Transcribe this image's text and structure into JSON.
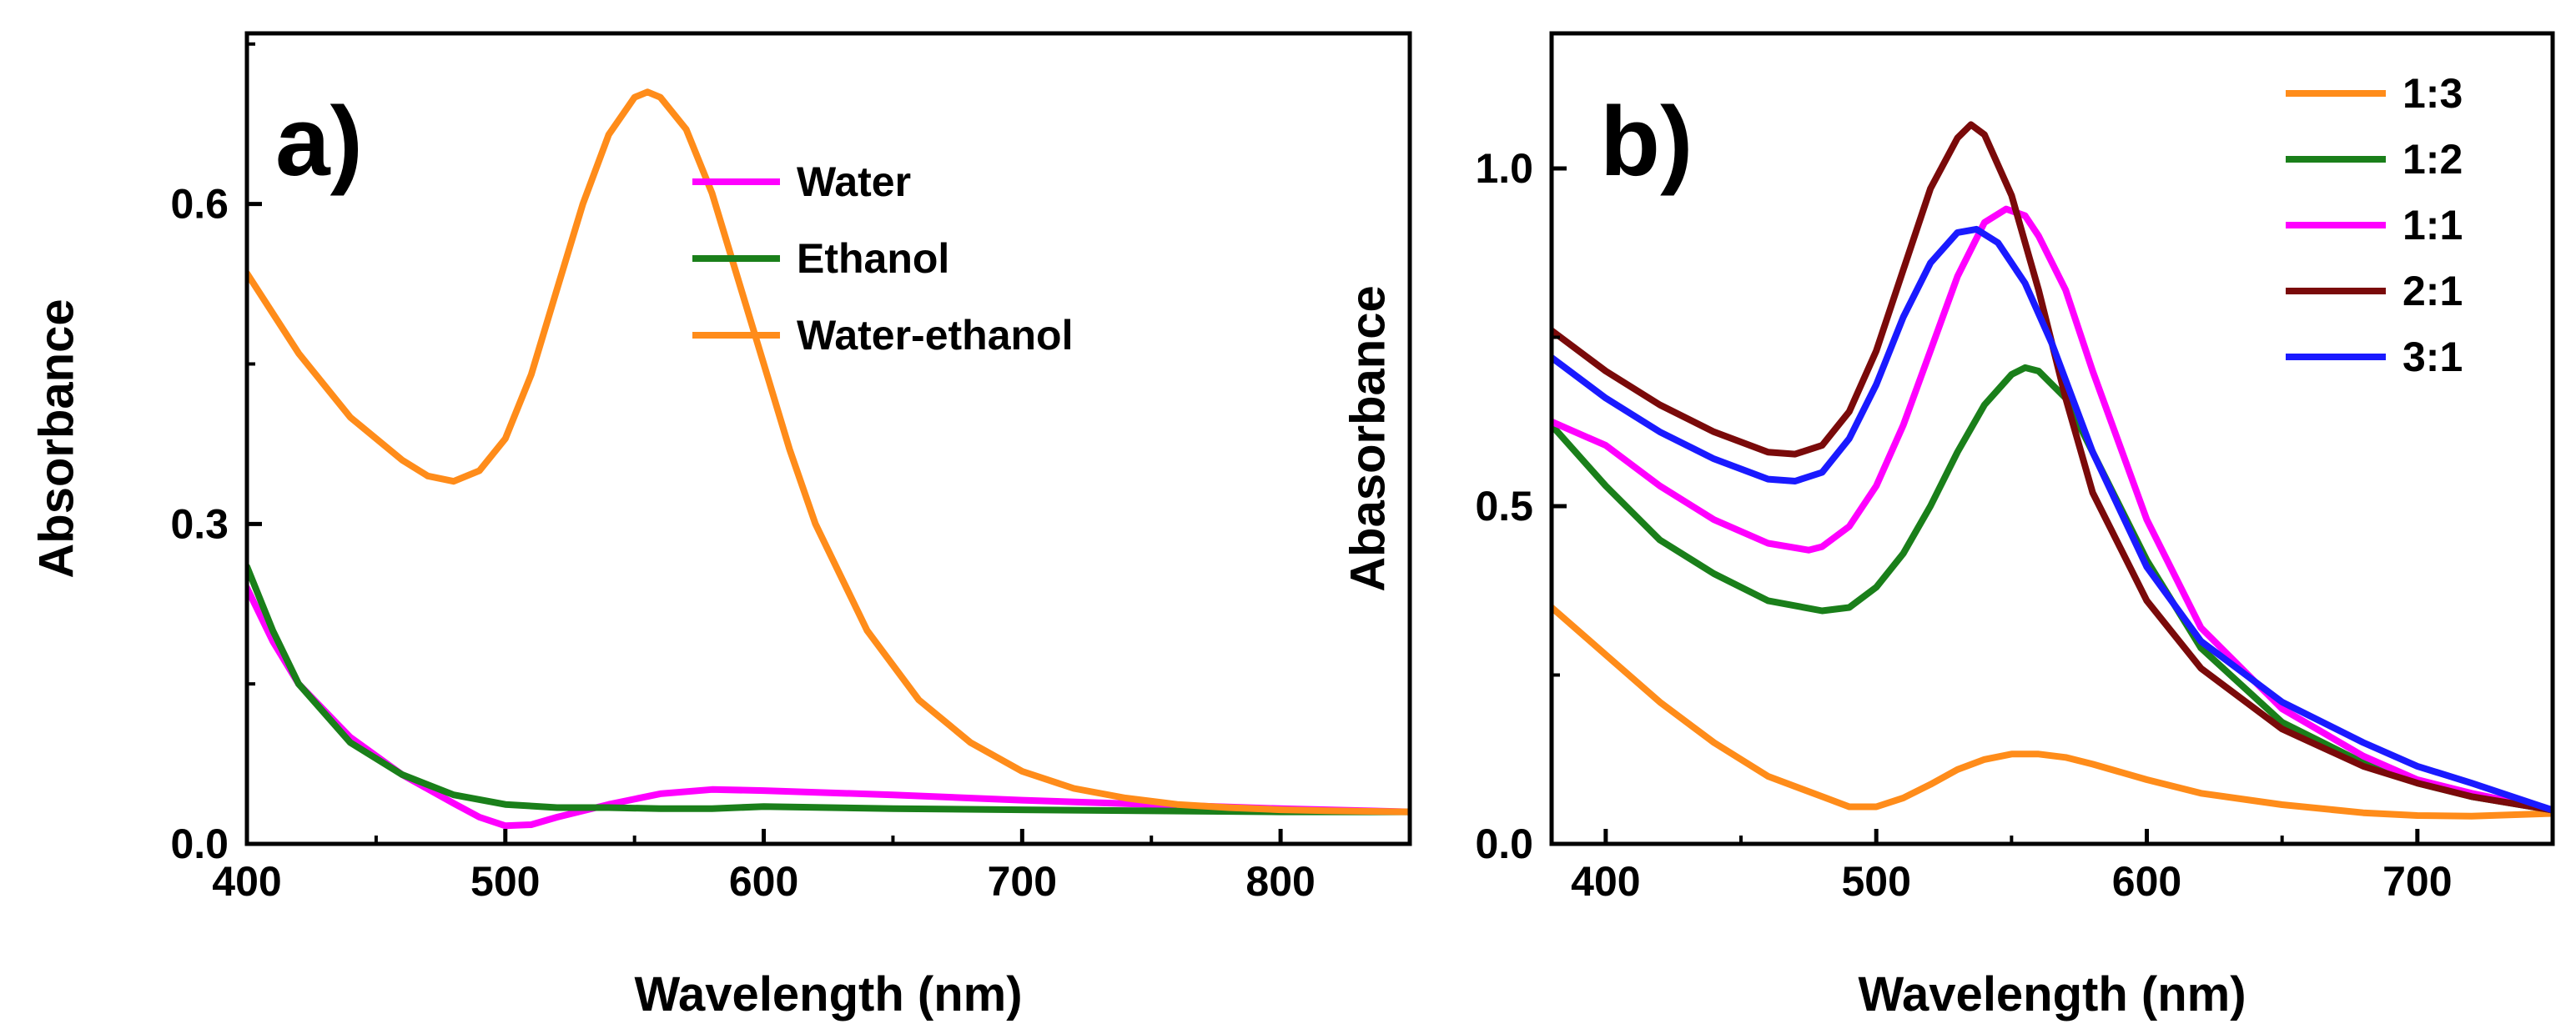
{
  "chart_data": [
    {
      "type": "line",
      "panel_label": "a)",
      "xlabel": "Wavelength (nm)",
      "ylabel": "Absorbance",
      "xlim": [
        400,
        850
      ],
      "ylim": [
        0,
        0.76
      ],
      "xticks": [
        400,
        500,
        600,
        700,
        800
      ],
      "xtick_labels": [
        "400",
        "500",
        "600",
        "700",
        "800"
      ],
      "yticks": [
        0,
        0.3,
        0.6
      ],
      "ytick_labels": [
        "0.0",
        "0.3",
        "0.6"
      ],
      "legend_position": "top-right",
      "series": [
        {
          "name": "Water",
          "color": "#ff00ff",
          "x": [
            400,
            410,
            420,
            440,
            460,
            480,
            490,
            500,
            510,
            520,
            540,
            560,
            580,
            600,
            650,
            700,
            750,
            800,
            850
          ],
          "y": [
            0.24,
            0.19,
            0.15,
            0.1,
            0.065,
            0.038,
            0.025,
            0.017,
            0.018,
            0.025,
            0.037,
            0.047,
            0.051,
            0.05,
            0.046,
            0.041,
            0.037,
            0.033,
            0.03
          ]
        },
        {
          "name": "Ethanol",
          "color": "#1a7f1a",
          "x": [
            400,
            410,
            420,
            440,
            460,
            480,
            500,
            520,
            540,
            560,
            580,
            600,
            650,
            700,
            750,
            800,
            850
          ],
          "y": [
            0.26,
            0.2,
            0.15,
            0.095,
            0.065,
            0.046,
            0.037,
            0.034,
            0.034,
            0.033,
            0.033,
            0.035,
            0.033,
            0.032,
            0.031,
            0.03,
            0.03
          ]
        },
        {
          "name": "Water-ethanol",
          "color": "#ff8c1a",
          "x": [
            400,
            420,
            440,
            460,
            470,
            480,
            490,
            500,
            510,
            520,
            530,
            540,
            550,
            555,
            560,
            570,
            580,
            590,
            600,
            610,
            620,
            640,
            660,
            680,
            700,
            720,
            740,
            760,
            780,
            800,
            820,
            850
          ],
          "y": [
            0.535,
            0.46,
            0.4,
            0.36,
            0.345,
            0.34,
            0.35,
            0.38,
            0.44,
            0.52,
            0.6,
            0.665,
            0.7,
            0.705,
            0.7,
            0.67,
            0.61,
            0.53,
            0.45,
            0.37,
            0.3,
            0.2,
            0.135,
            0.095,
            0.068,
            0.052,
            0.043,
            0.037,
            0.034,
            0.032,
            0.031,
            0.03
          ]
        }
      ]
    },
    {
      "type": "line",
      "panel_label": "b)",
      "xlabel": "Wavelength (nm)",
      "ylabel": "Abasorbance",
      "xlim": [
        380,
        750
      ],
      "ylim": [
        0,
        1.2
      ],
      "xticks": [
        400,
        500,
        600,
        700
      ],
      "xtick_labels": [
        "400",
        "500",
        "600",
        "700"
      ],
      "yticks": [
        0,
        0.5,
        1.0
      ],
      "ytick_labels": [
        "0.0",
        "0.5",
        "1.0"
      ],
      "legend_position": "top-right",
      "series": [
        {
          "name": "1:3",
          "color": "#ff8c1a",
          "x": [
            380,
            400,
            420,
            440,
            460,
            480,
            490,
            500,
            510,
            520,
            530,
            540,
            550,
            560,
            570,
            580,
            600,
            620,
            650,
            680,
            700,
            720,
            750
          ],
          "y": [
            0.35,
            0.28,
            0.21,
            0.15,
            0.1,
            0.07,
            0.055,
            0.055,
            0.068,
            0.088,
            0.11,
            0.125,
            0.133,
            0.133,
            0.128,
            0.118,
            0.095,
            0.075,
            0.058,
            0.046,
            0.042,
            0.041,
            0.045
          ]
        },
        {
          "name": "1:2",
          "color": "#1a7f1a",
          "x": [
            380,
            400,
            420,
            440,
            460,
            480,
            490,
            500,
            510,
            520,
            530,
            540,
            550,
            555,
            560,
            570,
            580,
            600,
            620,
            650,
            680,
            700,
            720,
            750
          ],
          "y": [
            0.62,
            0.53,
            0.45,
            0.4,
            0.36,
            0.345,
            0.35,
            0.38,
            0.43,
            0.5,
            0.58,
            0.65,
            0.695,
            0.705,
            0.7,
            0.66,
            0.58,
            0.42,
            0.29,
            0.18,
            0.12,
            0.09,
            0.07,
            0.05
          ]
        },
        {
          "name": "1:1",
          "color": "#ff00ff",
          "x": [
            380,
            400,
            420,
            440,
            460,
            475,
            480,
            490,
            500,
            510,
            520,
            530,
            540,
            548,
            555,
            560,
            570,
            580,
            600,
            620,
            650,
            680,
            700,
            720,
            750
          ],
          "y": [
            0.625,
            0.59,
            0.53,
            0.48,
            0.445,
            0.435,
            0.44,
            0.47,
            0.53,
            0.62,
            0.73,
            0.84,
            0.92,
            0.94,
            0.93,
            0.9,
            0.82,
            0.7,
            0.48,
            0.32,
            0.2,
            0.13,
            0.095,
            0.075,
            0.05
          ]
        },
        {
          "name": "2:1",
          "color": "#7a0a0a",
          "x": [
            380,
            400,
            420,
            440,
            460,
            470,
            480,
            490,
            500,
            510,
            520,
            530,
            535,
            540,
            550,
            560,
            570,
            580,
            600,
            620,
            650,
            680,
            700,
            720,
            750
          ],
          "y": [
            0.76,
            0.7,
            0.65,
            0.61,
            0.58,
            0.577,
            0.59,
            0.64,
            0.73,
            0.85,
            0.97,
            1.045,
            1.065,
            1.05,
            0.96,
            0.82,
            0.66,
            0.52,
            0.36,
            0.26,
            0.17,
            0.115,
            0.09,
            0.07,
            0.05
          ]
        },
        {
          "name": "3:1",
          "color": "#1a1aff",
          "x": [
            380,
            400,
            420,
            440,
            460,
            470,
            480,
            490,
            500,
            510,
            520,
            530,
            537,
            545,
            555,
            565,
            580,
            600,
            620,
            650,
            680,
            700,
            720,
            750
          ],
          "y": [
            0.72,
            0.66,
            0.61,
            0.57,
            0.54,
            0.537,
            0.55,
            0.6,
            0.68,
            0.78,
            0.86,
            0.905,
            0.91,
            0.89,
            0.83,
            0.74,
            0.58,
            0.41,
            0.3,
            0.21,
            0.15,
            0.115,
            0.09,
            0.05
          ]
        }
      ]
    }
  ]
}
